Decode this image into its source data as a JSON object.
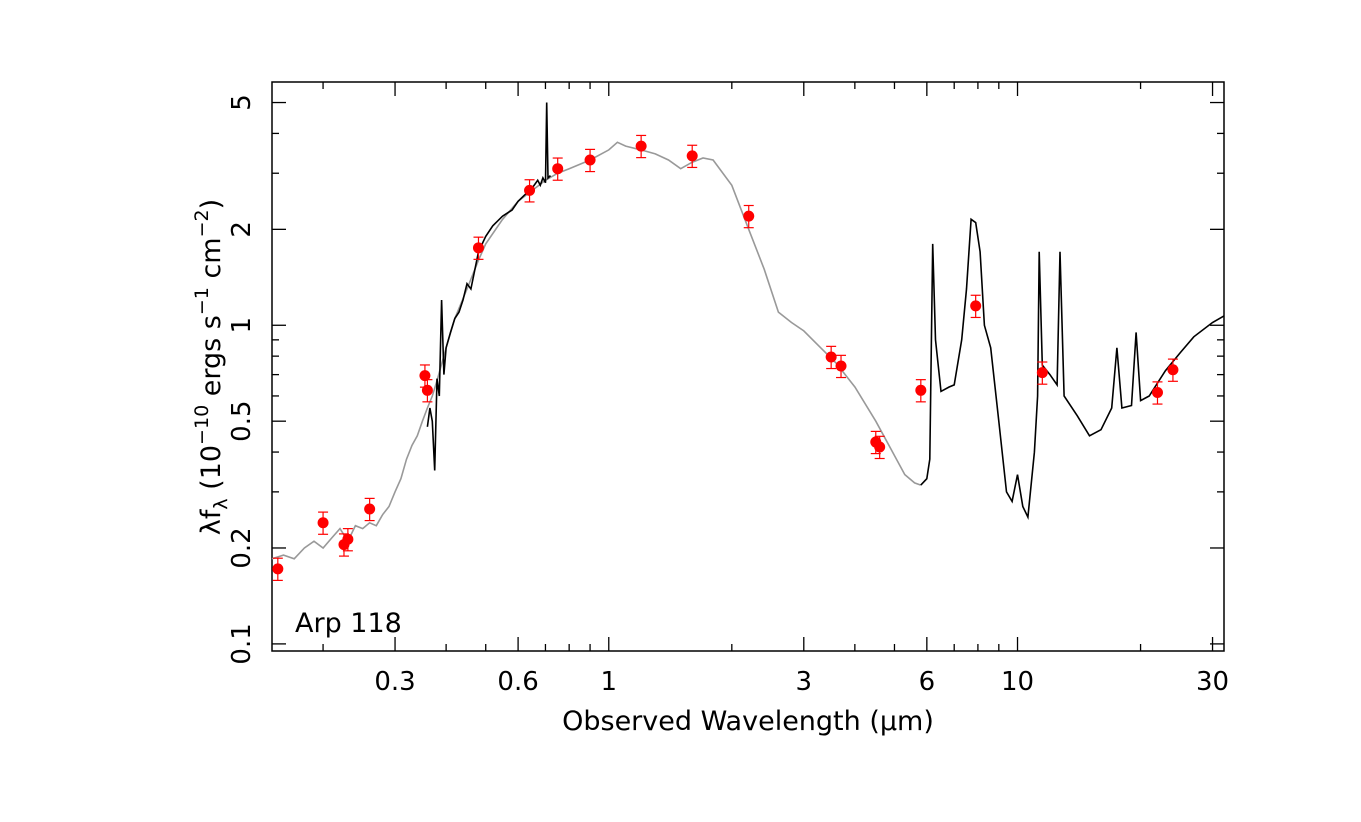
{
  "chart_data": {
    "type": "scatter",
    "title": "",
    "annotation": "Arp 118",
    "xlabel": "Observed Wavelength (μm)",
    "ylabel": "λf_λ (10^-10 ergs s^-1 cm^-2)",
    "ylabel_parts": {
      "lambda": "λf",
      "sub": "λ",
      "open": " (10",
      "exp1": "−10",
      "mid1": " ergs s",
      "exp2": "−1",
      "mid2": " cm",
      "exp3": "−2",
      "close": ")"
    },
    "x_scale": "log",
    "y_scale": "log",
    "xlim": [
      0.15,
      32
    ],
    "ylim": [
      0.095,
      5.8
    ],
    "x_ticks": [
      0.3,
      0.6,
      1,
      3,
      6,
      10,
      30
    ],
    "x_tick_labels": [
      "0.3",
      "0.6",
      "1",
      "3",
      "6",
      "10",
      "30"
    ],
    "y_ticks": [
      0.1,
      0.2,
      0.5,
      1,
      2,
      5
    ],
    "y_tick_labels": [
      "0.1",
      "0.2",
      "0.5",
      "1",
      "2",
      "5"
    ],
    "grid": false,
    "legend": "none",
    "colors": {
      "photometry": "#ff0000",
      "observed_spectrum": "#000000",
      "model_sed": "#999999"
    },
    "series": [
      {
        "role": "model_sed",
        "points": [
          [
            0.15,
            0.185
          ],
          [
            0.16,
            0.19
          ],
          [
            0.17,
            0.185
          ],
          [
            0.18,
            0.2
          ],
          [
            0.19,
            0.21
          ],
          [
            0.2,
            0.2
          ],
          [
            0.21,
            0.215
          ],
          [
            0.22,
            0.23
          ],
          [
            0.23,
            0.21
          ],
          [
            0.24,
            0.235
          ],
          [
            0.25,
            0.23
          ],
          [
            0.26,
            0.24
          ],
          [
            0.27,
            0.235
          ],
          [
            0.28,
            0.255
          ],
          [
            0.29,
            0.27
          ],
          [
            0.3,
            0.3
          ],
          [
            0.31,
            0.33
          ],
          [
            0.32,
            0.38
          ],
          [
            0.33,
            0.42
          ],
          [
            0.34,
            0.45
          ],
          [
            0.35,
            0.5
          ],
          [
            0.36,
            0.55
          ],
          [
            0.37,
            0.6
          ],
          [
            0.38,
            0.67
          ],
          [
            0.4,
            0.85
          ],
          [
            0.42,
            1.05
          ],
          [
            0.45,
            1.3
          ],
          [
            0.48,
            1.6
          ],
          [
            0.5,
            1.8
          ],
          [
            0.55,
            2.15
          ],
          [
            0.6,
            2.45
          ],
          [
            0.65,
            2.65
          ],
          [
            0.7,
            2.85
          ],
          [
            0.75,
            3.0
          ],
          [
            0.8,
            3.1
          ],
          [
            0.9,
            3.3
          ],
          [
            1.0,
            3.55
          ],
          [
            1.05,
            3.75
          ],
          [
            1.1,
            3.65
          ],
          [
            1.2,
            3.55
          ],
          [
            1.3,
            3.45
          ],
          [
            1.4,
            3.3
          ],
          [
            1.5,
            3.1
          ],
          [
            1.6,
            3.25
          ],
          [
            1.7,
            3.35
          ],
          [
            1.8,
            3.3
          ],
          [
            2.0,
            2.75
          ],
          [
            2.2,
            2.0
          ],
          [
            2.4,
            1.5
          ],
          [
            2.6,
            1.1
          ],
          [
            2.8,
            1.02
          ],
          [
            3.0,
            0.96
          ],
          [
            3.3,
            0.85
          ],
          [
            3.6,
            0.76
          ],
          [
            4.0,
            0.64
          ],
          [
            4.5,
            0.5
          ],
          [
            5.0,
            0.39
          ],
          [
            5.3,
            0.34
          ],
          [
            5.6,
            0.32
          ],
          [
            5.8,
            0.315
          ]
        ]
      },
      {
        "role": "observed_spectrum_optical",
        "points": [
          [
            0.36,
            0.48
          ],
          [
            0.365,
            0.55
          ],
          [
            0.37,
            0.5
          ],
          [
            0.375,
            0.35
          ],
          [
            0.38,
            0.68
          ],
          [
            0.385,
            0.6
          ],
          [
            0.39,
            1.2
          ],
          [
            0.395,
            0.7
          ],
          [
            0.4,
            0.85
          ],
          [
            0.41,
            0.95
          ],
          [
            0.42,
            1.05
          ],
          [
            0.43,
            1.1
          ],
          [
            0.44,
            1.2
          ],
          [
            0.45,
            1.35
          ],
          [
            0.46,
            1.3
          ],
          [
            0.48,
            1.7
          ],
          [
            0.5,
            1.9
          ],
          [
            0.52,
            2.05
          ],
          [
            0.55,
            2.2
          ],
          [
            0.58,
            2.3
          ],
          [
            0.6,
            2.45
          ],
          [
            0.62,
            2.55
          ],
          [
            0.65,
            2.7
          ],
          [
            0.67,
            2.85
          ],
          [
            0.68,
            2.75
          ],
          [
            0.69,
            2.9
          ],
          [
            0.7,
            2.8
          ],
          [
            0.705,
            5.0
          ],
          [
            0.71,
            2.9
          ],
          [
            0.72,
            2.95
          ]
        ]
      },
      {
        "role": "observed_spectrum_mir",
        "points": [
          [
            5.8,
            0.315
          ],
          [
            6.0,
            0.33
          ],
          [
            6.1,
            0.38
          ],
          [
            6.2,
            1.8
          ],
          [
            6.3,
            0.9
          ],
          [
            6.5,
            0.62
          ],
          [
            6.8,
            0.64
          ],
          [
            7.0,
            0.65
          ],
          [
            7.3,
            0.9
          ],
          [
            7.5,
            1.3
          ],
          [
            7.7,
            2.15
          ],
          [
            7.9,
            2.1
          ],
          [
            8.1,
            1.7
          ],
          [
            8.3,
            1.0
          ],
          [
            8.6,
            0.85
          ],
          [
            9.0,
            0.5
          ],
          [
            9.4,
            0.3
          ],
          [
            9.7,
            0.28
          ],
          [
            10.0,
            0.34
          ],
          [
            10.3,
            0.27
          ],
          [
            10.6,
            0.25
          ],
          [
            11.0,
            0.4
          ],
          [
            11.2,
            0.6
          ],
          [
            11.3,
            1.7
          ],
          [
            11.5,
            0.75
          ],
          [
            12.0,
            0.7
          ],
          [
            12.5,
            0.65
          ],
          [
            12.7,
            1.7
          ],
          [
            13.0,
            0.6
          ],
          [
            14.0,
            0.52
          ],
          [
            15.0,
            0.45
          ],
          [
            16.0,
            0.47
          ],
          [
            17.0,
            0.55
          ],
          [
            17.5,
            0.85
          ],
          [
            18.0,
            0.55
          ],
          [
            19.0,
            0.56
          ],
          [
            19.5,
            0.95
          ],
          [
            20.0,
            0.58
          ],
          [
            21.0,
            0.6
          ],
          [
            23.0,
            0.72
          ],
          [
            25.0,
            0.82
          ],
          [
            27.0,
            0.92
          ],
          [
            30.0,
            1.02
          ],
          [
            32.0,
            1.07
          ]
        ]
      },
      {
        "role": "photometry",
        "points": [
          [
            0.155,
            0.172
          ],
          [
            0.2,
            0.24
          ],
          [
            0.225,
            0.205
          ],
          [
            0.23,
            0.213
          ],
          [
            0.26,
            0.265
          ],
          [
            0.355,
            0.695
          ],
          [
            0.36,
            0.625
          ],
          [
            0.48,
            1.75
          ],
          [
            0.64,
            2.65
          ],
          [
            0.75,
            3.1
          ],
          [
            0.9,
            3.3
          ],
          [
            1.2,
            3.65
          ],
          [
            1.6,
            3.4
          ],
          [
            2.2,
            2.2
          ],
          [
            3.5,
            0.795
          ],
          [
            3.7,
            0.745
          ],
          [
            4.5,
            0.43
          ],
          [
            4.6,
            0.415
          ],
          [
            5.8,
            0.625
          ],
          [
            7.9,
            1.15
          ],
          [
            11.5,
            0.71
          ],
          [
            22.0,
            0.615
          ],
          [
            24.0,
            0.725
          ]
        ],
        "yerr_frac": 0.08
      }
    ]
  }
}
